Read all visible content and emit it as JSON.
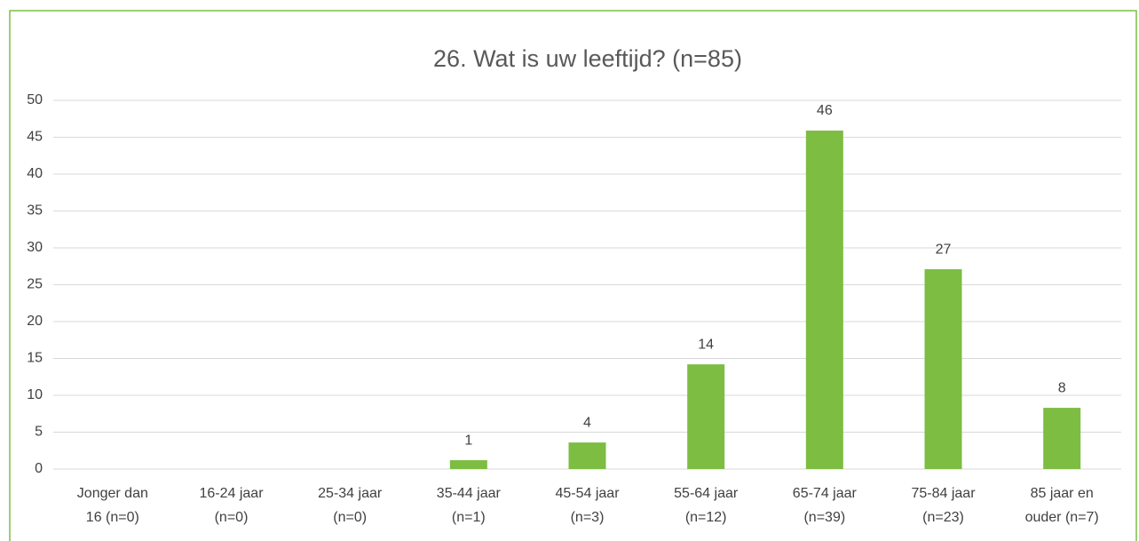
{
  "chart_data": {
    "type": "bar",
    "title": "26.  Wat is uw leeftijd? (n=85)",
    "categories": [
      [
        "Jonger dan",
        "16 (n=0)"
      ],
      [
        "16-24 jaar",
        "(n=0)"
      ],
      [
        "25-34 jaar",
        "(n=0)"
      ],
      [
        "35-44 jaar",
        "(n=1)"
      ],
      [
        "45-54 jaar",
        "(n=3)"
      ],
      [
        "55-64 jaar",
        "(n=12)"
      ],
      [
        "65-74 jaar",
        "(n=39)"
      ],
      [
        "75-84 jaar",
        "(n=23)"
      ],
      [
        "85 jaar en",
        "ouder (n=7)"
      ]
    ],
    "values": [
      0,
      0,
      0,
      1.2,
      3.6,
      14.2,
      45.9,
      27.1,
      8.3
    ],
    "value_labels": [
      null,
      null,
      null,
      "1",
      "4",
      "14",
      "46",
      "27",
      "8"
    ],
    "color": "#7cbd42",
    "ylim": [
      0,
      50
    ],
    "yticks": [
      0,
      5,
      10,
      15,
      20,
      25,
      30,
      35,
      40,
      45,
      50
    ],
    "grid": true
  }
}
